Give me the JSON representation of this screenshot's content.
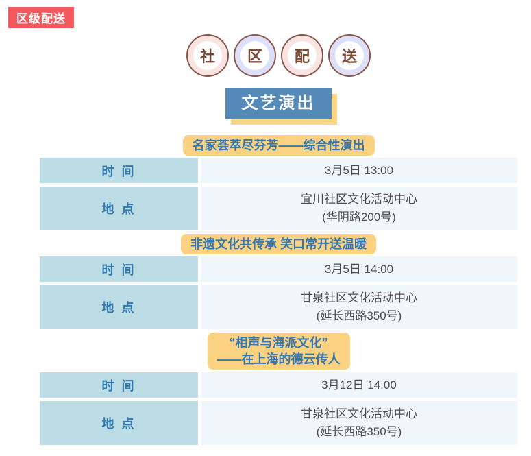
{
  "page": {
    "region_tag": "区级配送"
  },
  "circle_badges": [
    {
      "char": "社",
      "ring_color": "#fae4e2"
    },
    {
      "char": "区",
      "ring_color": "#dedff8"
    },
    {
      "char": "配",
      "ring_color": "#fae4e2"
    },
    {
      "char": "送",
      "ring_color": "#dedff8"
    }
  ],
  "banner": {
    "title": "文艺演出"
  },
  "labels": {
    "time": "时 间",
    "place": "地 点"
  },
  "events": [
    {
      "title_lines": [
        "名家荟萃尽芬芳——综合性演出",
        ""
      ],
      "time": "3月5日 13:00",
      "place_lines": [
        "宜川社区文化活动中心",
        "(华阴路200号)"
      ]
    },
    {
      "title_lines": [
        "非遗文化共传承 笑口常开送温暖",
        ""
      ],
      "time": "3月5日 14:00",
      "place_lines": [
        "甘泉社区文化活动中心",
        "(延长西路350号)"
      ]
    },
    {
      "title_lines": [
        "“相声与海派文化”",
        "——在上海的德云传人"
      ],
      "time": "3月12日 14:00",
      "place_lines": [
        "甘泉社区文化活动中心",
        "(延长西路350号)"
      ]
    }
  ],
  "colors": {
    "region_tag_bg": "#f4595d",
    "banner_bg": "#5589b7",
    "banner_shadow": "#fad585",
    "event_title_bg": "#fbd282",
    "event_title_text": "#3478b3",
    "label_cell_bg": "#bcdde5",
    "label_text": "#2f78b0",
    "value_cell_bg": "#eff6fc",
    "value_text": "#4e4e50",
    "circle_border": "#8a564a",
    "circle_text": "#7b4b38",
    "circle_pink": "#fae4e2",
    "circle_lavender": "#dedff8"
  }
}
